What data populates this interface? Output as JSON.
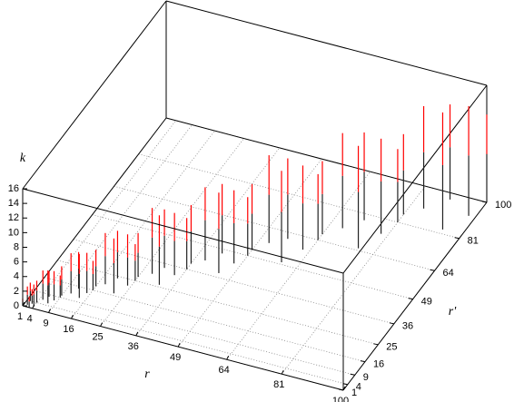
{
  "chart_data": {
    "type": "impulse3d",
    "xlabel": "r",
    "ylabel": "r'",
    "zlabel": "k",
    "xlim": [
      1,
      100
    ],
    "ylim": [
      1,
      100
    ],
    "zlim": [
      0,
      16
    ],
    "xticks": [
      1,
      4,
      9,
      16,
      25,
      36,
      49,
      64,
      81,
      100
    ],
    "yticks": [
      1,
      4,
      9,
      16,
      25,
      36,
      49,
      64,
      81,
      100
    ],
    "zticks": [
      0,
      2,
      4,
      6,
      8,
      10,
      12,
      14,
      16
    ],
    "grid": true,
    "series": [
      {
        "color": "#ff0000",
        "x": [
          1,
          2,
          3,
          4,
          2,
          3,
          4,
          5,
          6,
          7,
          8,
          9,
          9,
          11,
          12,
          14,
          15,
          16,
          16,
          18,
          20,
          22,
          24,
          25,
          25,
          28,
          30,
          32,
          34,
          36,
          36,
          39,
          42,
          45,
          47,
          49,
          49,
          52,
          56,
          59,
          62,
          64,
          64,
          68,
          72,
          76,
          79,
          81,
          81,
          85,
          90,
          94,
          98,
          100
        ],
        "y": [
          1,
          2,
          3,
          2,
          4,
          1,
          4,
          6,
          8,
          5,
          7,
          9,
          10,
          12,
          15,
          11,
          14,
          16,
          18,
          20,
          24,
          17,
          22,
          25,
          27,
          30,
          34,
          26,
          32,
          36,
          39,
          42,
          47,
          38,
          44,
          49,
          52,
          57,
          61,
          50,
          58,
          64,
          67,
          72,
          78,
          65,
          74,
          81,
          85,
          90,
          97,
          83,
          92,
          100
        ],
        "z": [
          1,
          2.5,
          2,
          3,
          2.5,
          1.5,
          3,
          4,
          3.5,
          4.5,
          4,
          3,
          4,
          5.5,
          5,
          6,
          5.5,
          4,
          5,
          7,
          6.5,
          7.5,
          7,
          5,
          6,
          9,
          8,
          9.5,
          8.5,
          7,
          8,
          10,
          9.5,
          11,
          10,
          8,
          9,
          12,
          11,
          12.5,
          11.5,
          9,
          10,
          13,
          12,
          14,
          13,
          10,
          11,
          14,
          13,
          16,
          15,
          12
        ]
      }
    ]
  }
}
